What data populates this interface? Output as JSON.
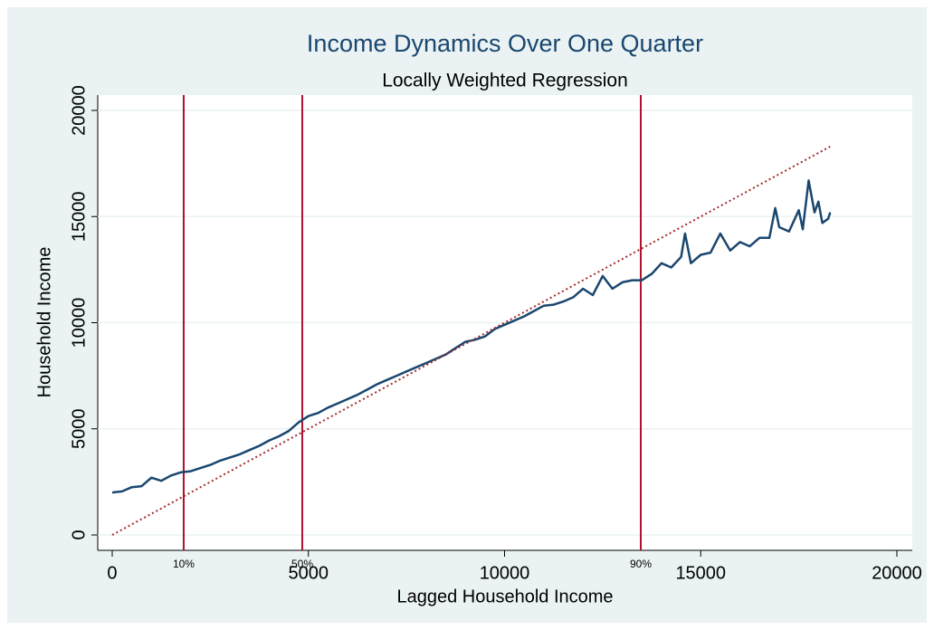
{
  "chart_data": {
    "type": "line",
    "title": "Income Dynamics Over One Quarter",
    "subtitle": "Locally Weighted Regression",
    "x_label": "Lagged Household Income",
    "y_label": "Household Income",
    "xlim": [
      -369,
      20392
    ],
    "ylim": [
      -725,
      20725
    ],
    "xticks": [
      0,
      5000,
      10000,
      15000,
      20000
    ],
    "yticks": [
      0,
      5000,
      10000,
      15000,
      20000
    ],
    "grid": true,
    "reference_lines": [
      {
        "value": 1822,
        "label": "10%",
        "color": "#b0102e"
      },
      {
        "value": 4844,
        "label": "50%",
        "color": "#b0102e"
      },
      {
        "value": 13472,
        "label": "90%",
        "color": "#b0102e"
      }
    ],
    "series": [
      {
        "color": "#1a476f",
        "style": "solid",
        "x": [
          0,
          250,
          500,
          750,
          1000,
          1250,
          1500,
          1750,
          2000,
          2250,
          2500,
          2750,
          3000,
          3250,
          3500,
          3750,
          4000,
          4250,
          4500,
          4750,
          5000,
          5250,
          5500,
          5750,
          6000,
          6250,
          6500,
          6750,
          7000,
          7250,
          7500,
          7750,
          8000,
          8250,
          8500,
          8750,
          9000,
          9250,
          9500,
          9750,
          10000,
          10250,
          10500,
          10750,
          11000,
          11250,
          11500,
          11750,
          12000,
          12250,
          12500,
          12750,
          13000,
          13250,
          13500,
          13750,
          14000,
          14250,
          14500,
          14600,
          14750,
          15000,
          15250,
          15500,
          15750,
          16000,
          16250,
          16500,
          16750,
          16900,
          17000,
          17250,
          17500,
          17600,
          17750,
          17900,
          18000,
          18100,
          18250,
          18300
        ],
        "values": [
          2000,
          2050,
          2250,
          2300,
          2700,
          2550,
          2800,
          2950,
          3000,
          3150,
          3300,
          3500,
          3650,
          3800,
          4000,
          4200,
          4450,
          4650,
          4900,
          5300,
          5600,
          5750,
          6000,
          6200,
          6400,
          6600,
          6850,
          7100,
          7300,
          7500,
          7700,
          7900,
          8100,
          8300,
          8500,
          8800,
          9100,
          9200,
          9350,
          9700,
          9900,
          10100,
          10300,
          10550,
          10800,
          10850,
          11000,
          11200,
          11600,
          11300,
          12200,
          11600,
          11900,
          12000,
          12000,
          12300,
          12800,
          12600,
          13100,
          14200,
          12800,
          13200,
          13300,
          14200,
          13400,
          13800,
          13600,
          14000,
          14000,
          15400,
          14500,
          14300,
          15300,
          14400,
          16700,
          15200,
          15700,
          14700,
          14900,
          15200
        ]
      },
      {
        "color": "#a52a2a",
        "style": "dotted",
        "x": [
          0,
          18300
        ],
        "values": [
          0,
          18300
        ]
      }
    ]
  }
}
